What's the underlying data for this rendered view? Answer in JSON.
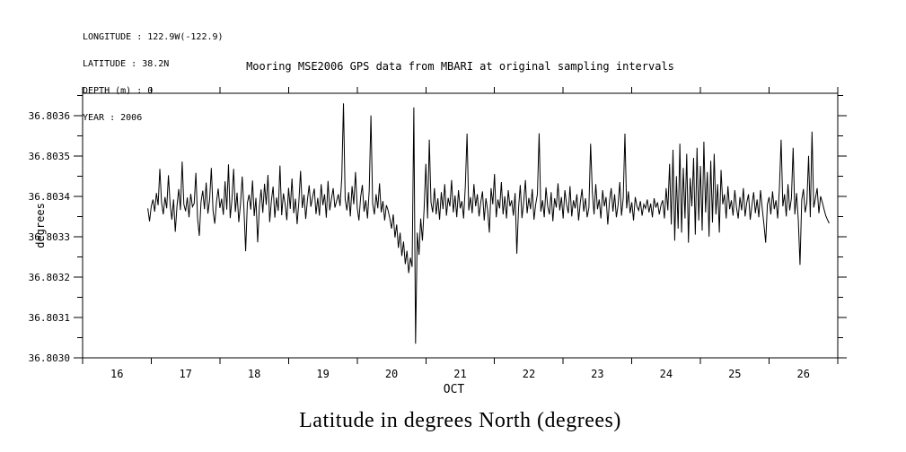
{
  "meta": {
    "lines": [
      "LONGITUDE : 122.9W(-122.9)",
      "LATITUDE : 38.2N",
      "DEPTH (m) : 0",
      "YEAR : 2006"
    ]
  },
  "title": "Mooring MSE2006 GPS data from MBARI at original sampling intervals",
  "caption": "Latitude in degrees North (degrees)",
  "colors": {
    "background": "#ffffff",
    "line": "#000000",
    "axis": "#000000"
  },
  "chart_data": {
    "type": "line",
    "title": "Mooring MSE2006 GPS data from MBARI at original sampling intervals",
    "xlabel": "OCT",
    "ylabel": "degrees",
    "grid": false,
    "legend": "none",
    "x_axis": {
      "min": 16,
      "max": 27,
      "major_ticks": [
        16,
        17,
        18,
        19,
        20,
        21,
        22,
        23,
        24,
        25,
        26,
        27
      ],
      "day_labels": [
        "16",
        "17",
        "18",
        "19",
        "20",
        "21",
        "22",
        "23",
        "24",
        "25",
        "26"
      ],
      "month_label": "OCT"
    },
    "y_axis": {
      "min": 36.803,
      "max": 36.803655,
      "major_tick_step": 0.0001,
      "minor_tick_step": 5e-05,
      "tick_labels": [
        "36.8030",
        "36.8031",
        "36.8032",
        "36.8033",
        "36.8034",
        "36.8035",
        "36.8036"
      ]
    },
    "series": [
      {
        "name": "latitude",
        "note": "lat_degN = y_base + value * y_unit ; x_day = x_start + index * x_step",
        "x_start": 16.95,
        "x_step": 0.025,
        "y_base": 36.803,
        "y_unit": 1e-06,
        "values": [
          370,
          338,
          375,
          392,
          362,
          408,
          378,
          468,
          385,
          355,
          398,
          370,
          452,
          380,
          342,
          392,
          312,
          376,
          418,
          366,
          486,
          380,
          363,
          397,
          348,
          406,
          374,
          382,
          458,
          344,
          302,
          386,
          414,
          368,
          434,
          357,
          391,
          470,
          364,
          332,
          386,
          419,
          371,
          394,
          354,
          437,
          367,
          479,
          346,
          391,
          468,
          361,
          409,
          336,
          381,
          449,
          369,
          264,
          384,
          404,
          367,
          439,
          351,
          396,
          286,
          374,
          417,
          359,
          431,
          379,
          453,
          336,
          389,
          424,
          347,
          397,
          364,
          476,
          353,
          407,
          381,
          341,
          421,
          369,
          444,
          358,
          394,
          331,
          386,
          463,
          371,
          404,
          344,
          391,
          427,
          374,
          398,
          419,
          356,
          396,
          352,
          430,
          378,
          405,
          347,
          438,
          365,
          394,
          420,
          372,
          388,
          405,
          376,
          445,
          630,
          392,
          365,
          410,
          350,
          425,
          380,
          460,
          372,
          340,
          398,
          428,
          362,
          390,
          345,
          415,
          600,
          382,
          355,
          405,
          370,
          432,
          360,
          388,
          340,
          378,
          365,
          345,
          320,
          355,
          298,
          330,
          272,
          310,
          252,
          288,
          232,
          265,
          210,
          248,
          225,
          620,
          35,
          310,
          255,
          345,
          290,
          370,
          480,
          345,
          540,
          385,
          360,
          420,
          355,
          395,
          342,
          410,
          368,
          430,
          352,
          396,
          375,
          440,
          360,
          402,
          348,
          415,
          370,
          388,
          345,
          425,
          555,
          365,
          398,
          358,
          430,
          375,
          405,
          350,
          385,
          412,
          340,
          395,
          365,
          310,
          420,
          380,
          455,
          348,
          392,
          370,
          435,
          355,
          400,
          345,
          415,
          375,
          390,
          352,
          408,
          258,
          370,
          428,
          346,
          385,
          440,
          358,
          396,
          368,
          418,
          342,
          380,
          405,
          556,
          362,
          390,
          348,
          422,
          375,
          355,
          410,
          338,
          395,
          372,
          432,
          365,
          398,
          345,
          415,
          380,
          358,
          425,
          350,
          390,
          370,
          405,
          340,
          385,
          418,
          362,
          395,
          348,
          372,
          530,
          410,
          355,
          430,
          368,
          392,
          345,
          415,
          375,
          398,
          330,
          388,
          420,
          362,
          405,
          348,
          378,
          435,
          352,
          396,
          555,
          370,
          412,
          358,
          385,
          340,
          398,
          375,
          365,
          388,
          352,
          380,
          370,
          392,
          360,
          382,
          348,
          395,
          372,
          385,
          355,
          378,
          390,
          345,
          420,
          365,
          480,
          330,
          515,
          290,
          450,
          320,
          530,
          310,
          470,
          345,
          505,
          285,
          445,
          375,
          495,
          305,
          520,
          340,
          475,
          315,
          535,
          360,
          460,
          300,
          488,
          335,
          505,
          355,
          430,
          310,
          465,
          380,
          405,
          345,
          425,
          368,
          390,
          352,
          415,
          372,
          345,
          398,
          365,
          420,
          350,
          385,
          405,
          342,
          378,
          410,
          358,
          392,
          348,
          415,
          370,
          330,
          285,
          380,
          398,
          355,
          412,
          368,
          390,
          345,
          420,
          540,
          375,
          405,
          350,
          430,
          365,
          395,
          520,
          355,
          408,
          342,
          230,
          390,
          418,
          360,
          385,
          500,
          348,
          560,
          372,
          395,
          420,
          358,
          400,
          385,
          368,
          352,
          342,
          333
        ]
      }
    ]
  }
}
